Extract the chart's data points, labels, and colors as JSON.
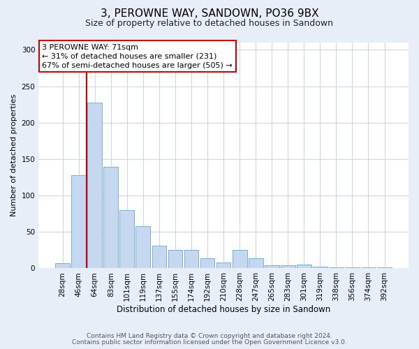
{
  "title": "3, PEROWNE WAY, SANDOWN, PO36 9BX",
  "subtitle": "Size of property relative to detached houses in Sandown",
  "xlabel": "Distribution of detached houses by size in Sandown",
  "ylabel": "Number of detached properties",
  "bar_labels": [
    "28sqm",
    "46sqm",
    "64sqm",
    "83sqm",
    "101sqm",
    "119sqm",
    "137sqm",
    "155sqm",
    "174sqm",
    "192sqm",
    "210sqm",
    "228sqm",
    "247sqm",
    "265sqm",
    "283sqm",
    "301sqm",
    "319sqm",
    "338sqm",
    "356sqm",
    "374sqm",
    "392sqm"
  ],
  "bar_heights": [
    7,
    128,
    228,
    139,
    80,
    58,
    31,
    25,
    25,
    14,
    8,
    25,
    14,
    4,
    4,
    5,
    2,
    1,
    1,
    1,
    1
  ],
  "bar_color": "#c5d8f0",
  "bar_edge_color": "#7aafd4",
  "vline_color": "#cc0000",
  "vline_x": 1.5,
  "annotation_title": "3 PEROWNE WAY: 71sqm",
  "annotation_line1": "← 31% of detached houses are smaller (231)",
  "annotation_line2": "67% of semi-detached houses are larger (505) →",
  "annotation_box_edgecolor": "#cc0000",
  "ylim": [
    0,
    310
  ],
  "yticks": [
    0,
    50,
    100,
    150,
    200,
    250,
    300
  ],
  "footer1": "Contains HM Land Registry data © Crown copyright and database right 2024.",
  "footer2": "Contains public sector information licensed under the Open Government Licence v3.0.",
  "bg_color": "#e8eef8",
  "plot_bg_color": "#ffffff",
  "grid_color": "#ccd6e8",
  "title_fontsize": 11,
  "subtitle_fontsize": 9,
  "ylabel_fontsize": 8,
  "xlabel_fontsize": 8.5,
  "tick_fontsize": 7.5,
  "annotation_fontsize": 8,
  "footer_fontsize": 6.5
}
